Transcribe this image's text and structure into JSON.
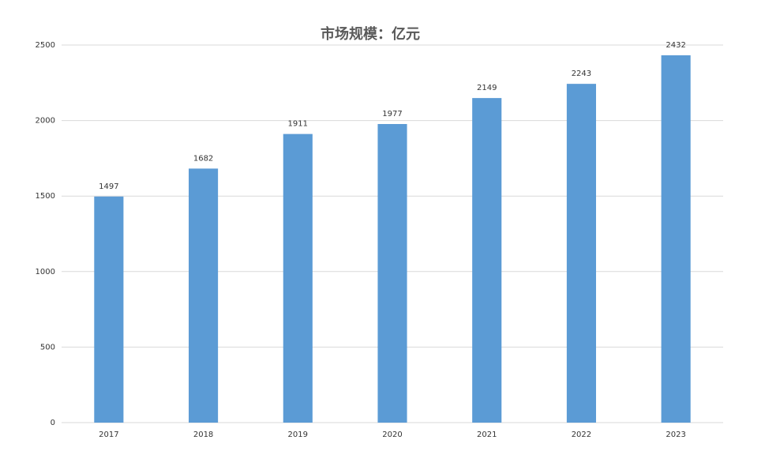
{
  "chart_data": {
    "type": "bar",
    "title": "市场规模：亿元",
    "categories": [
      "2017",
      "2018",
      "2019",
      "2020",
      "2021",
      "2022",
      "2023"
    ],
    "values": [
      1497,
      1682,
      1911,
      1977,
      2149,
      2243,
      2432
    ],
    "color": "#5b9bd5",
    "ylim": [
      0,
      2500
    ],
    "yticks": [
      0,
      500,
      1000,
      1500,
      2000,
      2500
    ],
    "grid": true
  }
}
